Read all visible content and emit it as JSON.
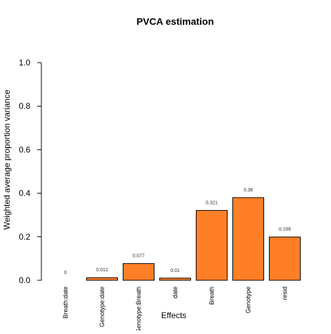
{
  "chart_data": {
    "type": "bar",
    "title": "PVCA estimation",
    "xlabel": "Effects",
    "ylabel": "Weighted average proportion variance",
    "ylim": [
      0,
      1.0
    ],
    "yticks": [
      "0.0",
      "0.2",
      "0.4",
      "0.6",
      "0.8",
      "1.0"
    ],
    "categories": [
      "Breath:date",
      "Genotype:date",
      "Genotype:Breath",
      "date",
      "Breath",
      "Genotype",
      "resid"
    ],
    "values": [
      0,
      0.012,
      0.077,
      0.01,
      0.321,
      0.38,
      0.199
    ],
    "data_labels": [
      "0",
      "0.012",
      "0.077",
      "0.01",
      "0.321",
      "0.38",
      "0.199"
    ],
    "bar_color": "#FF7F27",
    "bar_outline": "#000000",
    "grid": false,
    "legend": "none"
  }
}
